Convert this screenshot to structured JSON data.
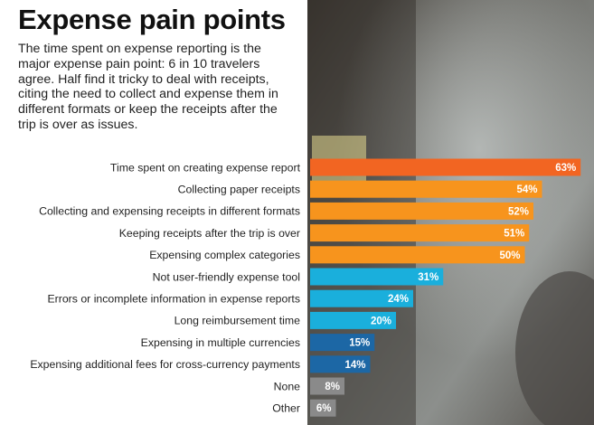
{
  "title": "Expense pain points",
  "subtitle": "The time spent on expense reporting is the major expense pain point: 6 in 10 travelers agree. Half find it tricky to deal with receipts, citing the need to collect and expense them in different formats or keep the receipts after the trip is over as issues.",
  "chart_data": {
    "type": "bar",
    "orientation": "horizontal",
    "categories": [
      "Time spent on creating expense report",
      "Collecting paper receipts",
      "Collecting and expensing receipts in different formats",
      "Keeping receipts after the trip is over",
      "Expensing complex categories",
      "Not user-friendly expense tool",
      "Errors or incomplete information in expense reports",
      "Long reimbursement time",
      "Expensing in multiple currencies",
      "Expensing additional fees for cross-currency payments",
      "None",
      "Other"
    ],
    "values": [
      63,
      54,
      52,
      51,
      50,
      31,
      24,
      20,
      15,
      14,
      8,
      6
    ],
    "value_labels": [
      "63%",
      "54%",
      "52%",
      "51%",
      "50%",
      "31%",
      "24%",
      "20%",
      "15%",
      "14%",
      "8%",
      "6%"
    ],
    "colors": [
      "#f26522",
      "#f7941d",
      "#f7941d",
      "#f7941d",
      "#f7941d",
      "#1aafdc",
      "#1aafdc",
      "#1aafdc",
      "#1c67a5",
      "#1c67a5",
      "#8a8a8a",
      "#8a8a8a"
    ]
  }
}
